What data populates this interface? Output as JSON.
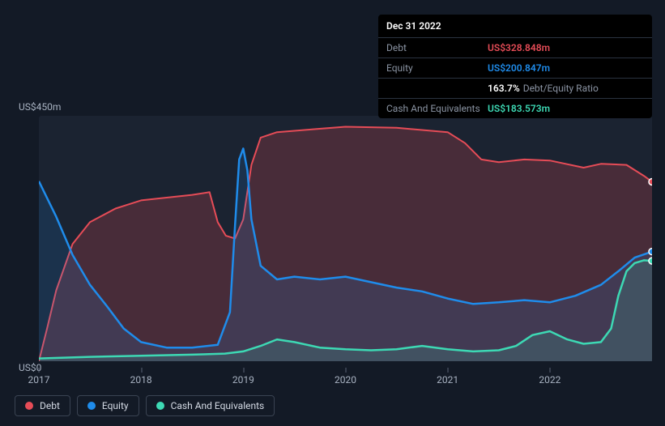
{
  "tooltip": {
    "date": "Dec 31 2022",
    "rows": [
      {
        "label": "Debt",
        "value": "US$328.848m",
        "color": "#e64c57"
      },
      {
        "label": "Equity",
        "value": "US$200.847m",
        "color": "#1f8ceb"
      },
      {
        "label": "",
        "ratio_value": "163.7%",
        "ratio_label": "Debt/Equity Ratio"
      },
      {
        "label": "Cash And Equivalents",
        "value": "US$183.573m",
        "color": "#3dd9b4"
      }
    ]
  },
  "chart": {
    "type": "area",
    "background_color": "#1b2331",
    "page_background": "#131a26",
    "y_axis": {
      "top_label": "US$450m",
      "bottom_label": "US$0",
      "min": 0,
      "max": 450
    },
    "x_axis": {
      "min": 2017,
      "max": 2023,
      "ticks": [
        "2017",
        "2018",
        "2019",
        "2020",
        "2021",
        "2022"
      ]
    },
    "series": [
      {
        "name": "Debt",
        "color": "#e64c57",
        "fill_opacity": 0.22,
        "line_width": 2,
        "data": [
          [
            2017.0,
            0
          ],
          [
            2017.08,
            60
          ],
          [
            2017.17,
            130
          ],
          [
            2017.33,
            215
          ],
          [
            2017.5,
            255
          ],
          [
            2017.75,
            280
          ],
          [
            2018.0,
            295
          ],
          [
            2018.25,
            300
          ],
          [
            2018.5,
            305
          ],
          [
            2018.67,
            310
          ],
          [
            2018.75,
            255
          ],
          [
            2018.83,
            230
          ],
          [
            2018.92,
            225
          ],
          [
            2019.0,
            260
          ],
          [
            2019.08,
            360
          ],
          [
            2019.17,
            410
          ],
          [
            2019.33,
            420
          ],
          [
            2019.67,
            425
          ],
          [
            2020.0,
            430
          ],
          [
            2020.5,
            428
          ],
          [
            2021.0,
            420
          ],
          [
            2021.17,
            400
          ],
          [
            2021.33,
            370
          ],
          [
            2021.5,
            365
          ],
          [
            2021.75,
            370
          ],
          [
            2022.0,
            368
          ],
          [
            2022.33,
            355
          ],
          [
            2022.5,
            362
          ],
          [
            2022.75,
            360
          ],
          [
            2022.92,
            340
          ],
          [
            2023.0,
            329
          ]
        ]
      },
      {
        "name": "Equity",
        "color": "#1f8ceb",
        "fill_opacity": 0.15,
        "line_width": 2.5,
        "data": [
          [
            2017.0,
            330
          ],
          [
            2017.17,
            265
          ],
          [
            2017.33,
            195
          ],
          [
            2017.5,
            140
          ],
          [
            2017.67,
            100
          ],
          [
            2017.83,
            60
          ],
          [
            2018.0,
            35
          ],
          [
            2018.25,
            25
          ],
          [
            2018.5,
            25
          ],
          [
            2018.75,
            30
          ],
          [
            2018.87,
            90
          ],
          [
            2018.92,
            250
          ],
          [
            2018.96,
            370
          ],
          [
            2019.0,
            390
          ],
          [
            2019.04,
            350
          ],
          [
            2019.08,
            260
          ],
          [
            2019.17,
            175
          ],
          [
            2019.33,
            150
          ],
          [
            2019.5,
            155
          ],
          [
            2019.75,
            150
          ],
          [
            2020.0,
            155
          ],
          [
            2020.25,
            145
          ],
          [
            2020.5,
            135
          ],
          [
            2020.75,
            128
          ],
          [
            2021.0,
            115
          ],
          [
            2021.25,
            105
          ],
          [
            2021.5,
            108
          ],
          [
            2021.75,
            112
          ],
          [
            2022.0,
            108
          ],
          [
            2022.25,
            120
          ],
          [
            2022.5,
            140
          ],
          [
            2022.67,
            165
          ],
          [
            2022.83,
            190
          ],
          [
            2023.0,
            201
          ]
        ]
      },
      {
        "name": "Cash And Equivalents",
        "color": "#3dd9b4",
        "fill_opacity": 0.15,
        "line_width": 2.5,
        "data": [
          [
            2017.0,
            5
          ],
          [
            2017.5,
            8
          ],
          [
            2018.0,
            10
          ],
          [
            2018.5,
            12
          ],
          [
            2018.82,
            14
          ],
          [
            2019.0,
            18
          ],
          [
            2019.17,
            28
          ],
          [
            2019.33,
            40
          ],
          [
            2019.5,
            35
          ],
          [
            2019.75,
            25
          ],
          [
            2020.0,
            22
          ],
          [
            2020.25,
            20
          ],
          [
            2020.5,
            22
          ],
          [
            2020.75,
            28
          ],
          [
            2021.0,
            22
          ],
          [
            2021.25,
            18
          ],
          [
            2021.5,
            20
          ],
          [
            2021.67,
            28
          ],
          [
            2021.83,
            48
          ],
          [
            2022.0,
            55
          ],
          [
            2022.17,
            40
          ],
          [
            2022.33,
            32
          ],
          [
            2022.5,
            35
          ],
          [
            2022.6,
            60
          ],
          [
            2022.67,
            120
          ],
          [
            2022.75,
            165
          ],
          [
            2022.83,
            180
          ],
          [
            2022.92,
            185
          ],
          [
            2023.0,
            184
          ]
        ]
      }
    ],
    "legend": [
      {
        "label": "Debt",
        "color": "#e64c57"
      },
      {
        "label": "Equity",
        "color": "#1f8ceb"
      },
      {
        "label": "Cash And Equivalents",
        "color": "#3dd9b4"
      }
    ]
  }
}
